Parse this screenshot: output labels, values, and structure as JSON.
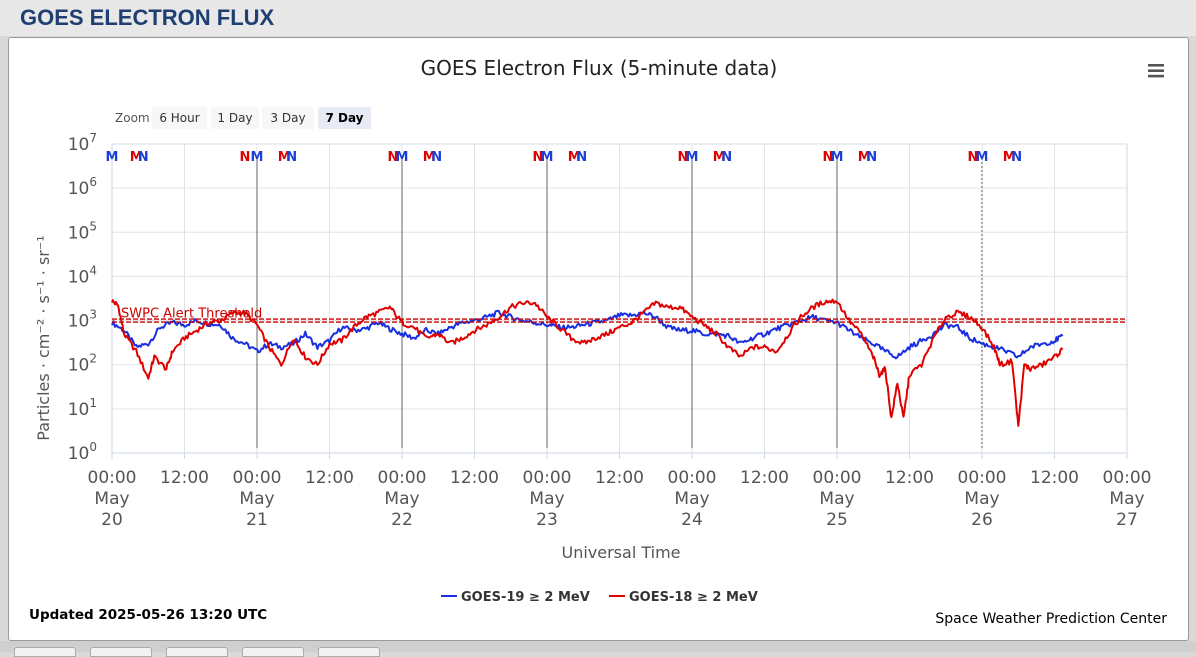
{
  "page": {
    "title": "GOES ELECTRON FLUX"
  },
  "toolbar": {
    "zoom_label": "Zoom",
    "zoom_buttons": [
      "6 Hour",
      "1 Day",
      "3 Day",
      "7 Day"
    ],
    "zoom_selected": "7 Day",
    "menu_icon": "hamburger-menu-icon"
  },
  "footer": {
    "updated": "Updated 2025-05-26 13:20 UTC",
    "credit": "Space Weather Prediction Center"
  },
  "chart_data": {
    "type": "line",
    "title": "GOES Electron Flux (5-minute data)",
    "xlabel": "Universal Time",
    "ylabel": "Particles · cm⁻² · s⁻¹ · sr⁻¹",
    "y_scale": "log",
    "ylim": [
      1,
      10000000
    ],
    "y_ticks": [
      {
        "base": "10",
        "exp": "0"
      },
      {
        "base": "10",
        "exp": "1"
      },
      {
        "base": "10",
        "exp": "2"
      },
      {
        "base": "10",
        "exp": "3"
      },
      {
        "base": "10",
        "exp": "4"
      },
      {
        "base": "10",
        "exp": "5"
      },
      {
        "base": "10",
        "exp": "6"
      },
      {
        "base": "10",
        "exp": "7"
      }
    ],
    "xlim": [
      "2025-05-20 00:00",
      "2025-05-27 00:00"
    ],
    "x_ticks": [
      [
        "00:00",
        "May",
        "20"
      ],
      [
        "12:00"
      ],
      [
        "00:00",
        "May",
        "21"
      ],
      [
        "12:00"
      ],
      [
        "00:00",
        "May",
        "22"
      ],
      [
        "12:00"
      ],
      [
        "00:00",
        "May",
        "23"
      ],
      [
        "12:00"
      ],
      [
        "00:00",
        "May",
        "24"
      ],
      [
        "12:00"
      ],
      [
        "00:00",
        "May",
        "25"
      ],
      [
        "12:00"
      ],
      [
        "00:00",
        "May",
        "26"
      ],
      [
        "12:00"
      ],
      [
        "00:00",
        "May",
        "27"
      ]
    ],
    "grid": true,
    "legend": "bottom-center",
    "threshold": {
      "label": "SWPC Alert Threshold",
      "value": 1000,
      "color": "#cc0000"
    },
    "noon_midnight_markers": [
      {
        "t": "2025-05-20 00:00",
        "text": "M",
        "color": "#1a3fd6"
      },
      {
        "t": "2025-05-20 04:00",
        "text": "M",
        "color": "#e00000"
      },
      {
        "t": "2025-05-20 05:10",
        "text": "N",
        "color": "#1a3fd6"
      },
      {
        "t": "2025-05-20 22:00",
        "text": "N",
        "color": "#e00000"
      },
      {
        "t": "2025-05-21 00:00",
        "text": "M",
        "color": "#1a3fd6"
      },
      {
        "t": "2025-05-21 04:30",
        "text": "M",
        "color": "#e00000"
      },
      {
        "t": "2025-05-21 05:45",
        "text": "N",
        "color": "#1a3fd6"
      },
      {
        "t": "2025-05-21 22:30",
        "text": "N",
        "color": "#e00000"
      },
      {
        "t": "2025-05-22 00:00",
        "text": "M",
        "color": "#1a3fd6"
      },
      {
        "t": "2025-05-22 04:30",
        "text": "M",
        "color": "#e00000"
      },
      {
        "t": "2025-05-22 05:45",
        "text": "N",
        "color": "#1a3fd6"
      },
      {
        "t": "2025-05-22 22:30",
        "text": "N",
        "color": "#e00000"
      },
      {
        "t": "2025-05-23 00:00",
        "text": "M",
        "color": "#1a3fd6"
      },
      {
        "t": "2025-05-23 04:30",
        "text": "M",
        "color": "#e00000"
      },
      {
        "t": "2025-05-23 05:45",
        "text": "N",
        "color": "#1a3fd6"
      },
      {
        "t": "2025-05-23 22:30",
        "text": "N",
        "color": "#e00000"
      },
      {
        "t": "2025-05-24 00:00",
        "text": "M",
        "color": "#1a3fd6"
      },
      {
        "t": "2025-05-24 04:30",
        "text": "M",
        "color": "#e00000"
      },
      {
        "t": "2025-05-24 05:45",
        "text": "N",
        "color": "#1a3fd6"
      },
      {
        "t": "2025-05-24 22:30",
        "text": "N",
        "color": "#e00000"
      },
      {
        "t": "2025-05-25 00:00",
        "text": "M",
        "color": "#1a3fd6"
      },
      {
        "t": "2025-05-25 04:30",
        "text": "M",
        "color": "#e00000"
      },
      {
        "t": "2025-05-25 05:45",
        "text": "N",
        "color": "#1a3fd6"
      },
      {
        "t": "2025-05-25 22:30",
        "text": "N",
        "color": "#e00000"
      },
      {
        "t": "2025-05-26 00:00",
        "text": "M",
        "color": "#1a3fd6"
      },
      {
        "t": "2025-05-26 04:30",
        "text": "M",
        "color": "#e00000"
      },
      {
        "t": "2025-05-26 05:45",
        "text": "N",
        "color": "#1a3fd6"
      }
    ],
    "series": [
      {
        "name": "GOES-19 ≥ 2 MeV",
        "color": "#1a2fe0",
        "points": [
          [
            "2025-05-20 00:00",
            900
          ],
          [
            "2025-05-20 02:00",
            600
          ],
          [
            "2025-05-20 04:00",
            250
          ],
          [
            "2025-05-20 06:00",
            300
          ],
          [
            "2025-05-20 08:00",
            700
          ],
          [
            "2025-05-20 10:00",
            900
          ],
          [
            "2025-05-20 12:00",
            800
          ],
          [
            "2025-05-20 14:00",
            1000
          ],
          [
            "2025-05-20 16:00",
            850
          ],
          [
            "2025-05-20 18:00",
            800
          ],
          [
            "2025-05-20 20:00",
            400
          ],
          [
            "2025-05-20 22:00",
            300
          ],
          [
            "2025-05-21 00:00",
            200
          ],
          [
            "2025-05-21 02:00",
            300
          ],
          [
            "2025-05-21 04:00",
            250
          ],
          [
            "2025-05-21 06:00",
            300
          ],
          [
            "2025-05-21 08:00",
            500
          ],
          [
            "2025-05-21 10:00",
            250
          ],
          [
            "2025-05-21 12:00",
            350
          ],
          [
            "2025-05-21 14:00",
            700
          ],
          [
            "2025-05-21 16:00",
            600
          ],
          [
            "2025-05-21 18:00",
            650
          ],
          [
            "2025-05-21 20:00",
            900
          ],
          [
            "2025-05-21 22:00",
            650
          ],
          [
            "2025-05-22 00:00",
            500
          ],
          [
            "2025-05-22 02:00",
            400
          ],
          [
            "2025-05-22 04:00",
            600
          ],
          [
            "2025-05-22 06:00",
            500
          ],
          [
            "2025-05-22 08:00",
            700
          ],
          [
            "2025-05-22 10:00",
            900
          ],
          [
            "2025-05-22 12:00",
            1000
          ],
          [
            "2025-05-22 14:00",
            1200
          ],
          [
            "2025-05-22 16:00",
            1500
          ],
          [
            "2025-05-22 18:00",
            1200
          ],
          [
            "2025-05-22 20:00",
            1000
          ],
          [
            "2025-05-22 22:00",
            900
          ],
          [
            "2025-05-23 00:00",
            800
          ],
          [
            "2025-05-23 02:00",
            700
          ],
          [
            "2025-05-23 04:00",
            700
          ],
          [
            "2025-05-23 06:00",
            800
          ],
          [
            "2025-05-23 08:00",
            900
          ],
          [
            "2025-05-23 10:00",
            1000
          ],
          [
            "2025-05-23 12:00",
            1300
          ],
          [
            "2025-05-23 14:00",
            1300
          ],
          [
            "2025-05-23 16:00",
            1500
          ],
          [
            "2025-05-23 18:00",
            1200
          ],
          [
            "2025-05-23 20:00",
            700
          ],
          [
            "2025-05-23 22:00",
            600
          ],
          [
            "2025-05-24 00:00",
            600
          ],
          [
            "2025-05-24 02:00",
            500
          ],
          [
            "2025-05-24 04:00",
            500
          ],
          [
            "2025-05-24 06:00",
            450
          ],
          [
            "2025-05-24 08:00",
            300
          ],
          [
            "2025-05-24 10:00",
            400
          ],
          [
            "2025-05-24 12:00",
            500
          ],
          [
            "2025-05-24 14:00",
            650
          ],
          [
            "2025-05-24 16:00",
            800
          ],
          [
            "2025-05-24 18:00",
            1000
          ],
          [
            "2025-05-24 20:00",
            1200
          ],
          [
            "2025-05-24 22:00",
            1000
          ],
          [
            "2025-05-25 00:00",
            900
          ],
          [
            "2025-05-25 02:00",
            600
          ],
          [
            "2025-05-25 04:00",
            400
          ],
          [
            "2025-05-25 06:00",
            300
          ],
          [
            "2025-05-25 08:00",
            200
          ],
          [
            "2025-05-25 10:00",
            150
          ],
          [
            "2025-05-25 12:00",
            250
          ],
          [
            "2025-05-25 14:00",
            350
          ],
          [
            "2025-05-25 16:00",
            500
          ],
          [
            "2025-05-25 18:00",
            800
          ],
          [
            "2025-05-25 20:00",
            700
          ],
          [
            "2025-05-25 22:00",
            400
          ],
          [
            "2025-05-26 00:00",
            300
          ],
          [
            "2025-05-26 02:00",
            250
          ],
          [
            "2025-05-26 04:00",
            200
          ],
          [
            "2025-05-26 06:00",
            150
          ],
          [
            "2025-05-26 08:00",
            250
          ],
          [
            "2025-05-26 10:00",
            300
          ],
          [
            "2025-05-26 12:00",
            350
          ],
          [
            "2025-05-26 13:20",
            450
          ]
        ]
      },
      {
        "name": "GOES-18 ≥ 2 MeV",
        "color": "#e00000",
        "points": [
          [
            "2025-05-20 00:00",
            2800
          ],
          [
            "2025-05-20 01:00",
            2200
          ],
          [
            "2025-05-20 02:00",
            500
          ],
          [
            "2025-05-20 04:00",
            200
          ],
          [
            "2025-05-20 06:00",
            50
          ],
          [
            "2025-05-20 07:00",
            150
          ],
          [
            "2025-05-20 09:00",
            80
          ],
          [
            "2025-05-20 10:00",
            200
          ],
          [
            "2025-05-20 12:00",
            400
          ],
          [
            "2025-05-20 14:00",
            600
          ],
          [
            "2025-05-20 16:00",
            900
          ],
          [
            "2025-05-20 18:00",
            1000
          ],
          [
            "2025-05-20 20:00",
            1500
          ],
          [
            "2025-05-20 22:00",
            1500
          ],
          [
            "2025-05-21 00:00",
            800
          ],
          [
            "2025-05-21 02:00",
            250
          ],
          [
            "2025-05-21 04:00",
            100
          ],
          [
            "2025-05-21 06:00",
            400
          ],
          [
            "2025-05-21 08:00",
            150
          ],
          [
            "2025-05-21 10:00",
            100
          ],
          [
            "2025-05-21 12:00",
            300
          ],
          [
            "2025-05-21 14:00",
            350
          ],
          [
            "2025-05-21 16:00",
            700
          ],
          [
            "2025-05-21 18:00",
            1200
          ],
          [
            "2025-05-21 20:00",
            1500
          ],
          [
            "2025-05-21 22:00",
            2000
          ],
          [
            "2025-05-22 00:00",
            900
          ],
          [
            "2025-05-22 02:00",
            700
          ],
          [
            "2025-05-22 04:00",
            400
          ],
          [
            "2025-05-22 06:00",
            500
          ],
          [
            "2025-05-22 08:00",
            300
          ],
          [
            "2025-05-22 10:00",
            400
          ],
          [
            "2025-05-22 12:00",
            600
          ],
          [
            "2025-05-22 14:00",
            800
          ],
          [
            "2025-05-22 16:00",
            1200
          ],
          [
            "2025-05-22 18:00",
            2000
          ],
          [
            "2025-05-22 20:00",
            2500
          ],
          [
            "2025-05-22 22:00",
            2500
          ],
          [
            "2025-05-23 00:00",
            1200
          ],
          [
            "2025-05-23 02:00",
            700
          ],
          [
            "2025-05-23 04:00",
            400
          ],
          [
            "2025-05-23 06:00",
            300
          ],
          [
            "2025-05-23 08:00",
            400
          ],
          [
            "2025-05-23 10:00",
            500
          ],
          [
            "2025-05-23 12:00",
            700
          ],
          [
            "2025-05-23 14:00",
            900
          ],
          [
            "2025-05-23 16:00",
            1500
          ],
          [
            "2025-05-23 18:00",
            2500
          ],
          [
            "2025-05-23 20:00",
            2000
          ],
          [
            "2025-05-23 22:00",
            2000
          ],
          [
            "2025-05-24 00:00",
            1200
          ],
          [
            "2025-05-24 02:00",
            800
          ],
          [
            "2025-05-24 04:00",
            500
          ],
          [
            "2025-05-24 06:00",
            250
          ],
          [
            "2025-05-24 08:00",
            150
          ],
          [
            "2025-05-24 10:00",
            250
          ],
          [
            "2025-05-24 12:00",
            250
          ],
          [
            "2025-05-24 14:00",
            200
          ],
          [
            "2025-05-24 16:00",
            500
          ],
          [
            "2025-05-24 18:00",
            1200
          ],
          [
            "2025-05-24 20:00",
            2000
          ],
          [
            "2025-05-24 22:00",
            2700
          ],
          [
            "2025-05-25 00:00",
            2800
          ],
          [
            "2025-05-25 02:00",
            1000
          ],
          [
            "2025-05-25 04:00",
            500
          ],
          [
            "2025-05-25 06:00",
            150
          ],
          [
            "2025-05-25 07:00",
            60
          ],
          [
            "2025-05-25 08:00",
            80
          ],
          [
            "2025-05-25 09:00",
            6
          ],
          [
            "2025-05-25 10:00",
            40
          ],
          [
            "2025-05-25 11:00",
            6
          ],
          [
            "2025-05-25 12:00",
            60
          ],
          [
            "2025-05-25 14:00",
            100
          ],
          [
            "2025-05-25 16:00",
            400
          ],
          [
            "2025-05-25 18:00",
            1200
          ],
          [
            "2025-05-25 20:00",
            1500
          ],
          [
            "2025-05-25 22:00",
            1200
          ],
          [
            "2025-05-26 00:00",
            700
          ],
          [
            "2025-05-26 02:00",
            250
          ],
          [
            "2025-05-26 03:00",
            100
          ],
          [
            "2025-05-26 05:00",
            120
          ],
          [
            "2025-05-26 06:00",
            4
          ],
          [
            "2025-05-26 07:00",
            100
          ],
          [
            "2025-05-26 08:00",
            80
          ],
          [
            "2025-05-26 10:00",
            100
          ],
          [
            "2025-05-26 12:00",
            150
          ],
          [
            "2025-05-26 13:20",
            220
          ]
        ]
      }
    ]
  }
}
